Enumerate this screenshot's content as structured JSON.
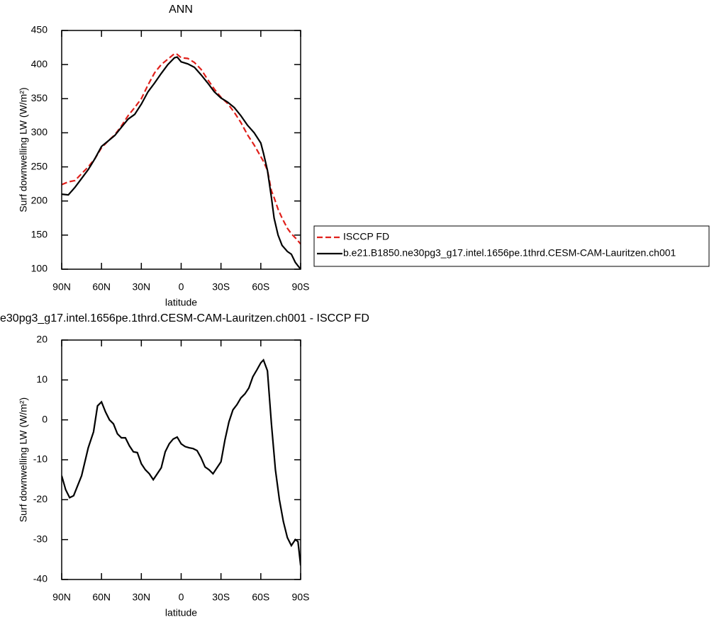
{
  "chart_data": [
    {
      "type": "line",
      "title": "ANN",
      "xlabel": "latitude",
      "ylabel": "Surf downwelling LW (W/m²)",
      "x": [
        90,
        85,
        80,
        75,
        70,
        65,
        60,
        55,
        50,
        45,
        40,
        35,
        30,
        25,
        20,
        15,
        10,
        5,
        3,
        0,
        -5,
        -10,
        -15,
        -20,
        -25,
        -30,
        -35,
        -40,
        -45,
        -50,
        -55,
        -60,
        -62,
        -65,
        -68,
        -70,
        -73,
        -76,
        -80,
        -83,
        -86,
        -90
      ],
      "series": [
        {
          "name": "ISCCP FD",
          "color": "#e0201b",
          "dashed": true,
          "values": [
            224,
            228,
            230,
            240,
            250,
            262,
            278,
            288,
            297,
            310,
            325,
            337,
            350,
            370,
            388,
            400,
            408,
            416,
            415,
            410,
            409,
            403,
            393,
            378,
            364,
            352,
            343,
            330,
            315,
            297,
            282,
            265,
            258,
            245,
            215,
            205,
            188,
            175,
            160,
            152,
            146,
            137
          ]
        },
        {
          "name": "b.e21.B1850.ne30pg3_g17.intel.1656pe.1thrd.CESM-CAM-Lauritzen.ch001",
          "color": "#000000",
          "dashed": false,
          "values": [
            210,
            209,
            220,
            233,
            246,
            262,
            280,
            288,
            296,
            308,
            320,
            327,
            342,
            360,
            373,
            387,
            400,
            410,
            411,
            404,
            401,
            396,
            385,
            373,
            360,
            351,
            345,
            337,
            325,
            311,
            300,
            285,
            270,
            245,
            205,
            175,
            150,
            135,
            126,
            122,
            110,
            100
          ]
        }
      ],
      "xlim": [
        90,
        -90
      ],
      "xticks": [
        {
          "value": 90,
          "label": "90N"
        },
        {
          "value": 60,
          "label": "60N"
        },
        {
          "value": 30,
          "label": "30N"
        },
        0,
        {
          "value": -30,
          "label": "30S"
        },
        {
          "value": -60,
          "label": "60S"
        },
        {
          "value": -90,
          "label": "90S"
        }
      ],
      "ylim": [
        100,
        450
      ],
      "yticks": [
        100,
        150,
        200,
        250,
        300,
        350,
        400,
        450
      ],
      "legend": "right"
    },
    {
      "type": "line",
      "title": "e30pg3_g17.intel.1656pe.1thrd.CESM-CAM-Lauritzen.ch001 - ISCCP FD",
      "xlabel": "latitude",
      "ylabel": "Surf downwelling LW (W/m²)",
      "x": [
        90,
        87,
        84,
        81,
        75,
        70,
        66,
        63,
        60,
        57,
        54,
        51,
        48,
        45,
        42,
        39,
        36,
        33,
        30,
        27,
        24,
        21,
        18,
        15,
        12,
        9,
        6,
        3,
        0,
        -3,
        -6,
        -9,
        -12,
        -15,
        -18,
        -21,
        -24,
        -27,
        -30,
        -33,
        -36,
        -39,
        -42,
        -45,
        -48,
        -51,
        -54,
        -57,
        -60,
        -62,
        -65,
        -68,
        -71,
        -74,
        -77,
        -80,
        -83,
        -86,
        -88,
        -90
      ],
      "series": [
        {
          "color": "#000000",
          "dashed": false,
          "values": [
            -14,
            -17.5,
            -19.5,
            -19,
            -14,
            -7,
            -3,
            3.5,
            4.5,
            2,
            0,
            -1,
            -3.5,
            -4.5,
            -4.5,
            -6.5,
            -8,
            -8.2,
            -11,
            -12.5,
            -13.5,
            -15,
            -13.5,
            -12,
            -8,
            -6,
            -4.8,
            -4.3,
            -6,
            -6.7,
            -7,
            -7.2,
            -7.7,
            -9.5,
            -11.8,
            -12.5,
            -13.5,
            -12,
            -10.5,
            -5,
            -0.5,
            2.5,
            3.8,
            5.5,
            6.5,
            8,
            10.8,
            12.5,
            14.3,
            15,
            12.3,
            -1,
            -12.5,
            -20,
            -25.5,
            -29.5,
            -31.5,
            -30,
            -30.5,
            -36.5
          ]
        }
      ],
      "xlim": [
        90,
        -90
      ],
      "xticks": [
        {
          "value": 90,
          "label": "90N"
        },
        {
          "value": 60,
          "label": "60N"
        },
        {
          "value": 30,
          "label": "30N"
        },
        0,
        {
          "value": -30,
          "label": "30S"
        },
        {
          "value": -60,
          "label": "60S"
        },
        {
          "value": -90,
          "label": "90S"
        }
      ],
      "ylim": [
        -40,
        20
      ],
      "yticks": [
        -40,
        -30,
        -20,
        -10,
        0,
        10,
        20
      ]
    }
  ]
}
